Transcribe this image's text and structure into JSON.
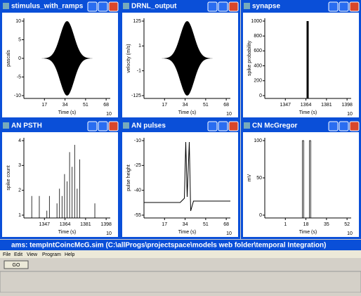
{
  "windows": [
    {
      "title": "stimulus_with_ramps",
      "y_label": "pascals",
      "x_label": "Time (s)",
      "x_scale": "10",
      "y_ticks": [
        "10",
        "5",
        "0",
        "-5",
        "-10"
      ],
      "x_ticks": [
        "17",
        "34",
        "51",
        "68"
      ]
    },
    {
      "title": "DRNL_output",
      "y_label": "velocity (m/s)",
      "x_label": "Time (s)",
      "x_scale": "10",
      "y_ticks": [
        "125",
        "1",
        "-1",
        "-125"
      ],
      "x_ticks": [
        "17",
        "34",
        "51",
        "68"
      ]
    },
    {
      "title": "synapse",
      "y_label": "spike probability",
      "x_label": "Time (s)",
      "x_scale": "10",
      "y_ticks": [
        "1000",
        "800",
        "600",
        "400",
        "200",
        "0"
      ],
      "x_ticks": [
        "1347",
        "1364",
        "1381",
        "1398"
      ]
    },
    {
      "title": "AN PSTH",
      "y_label": "spike count",
      "x_label": "Time (s)",
      "x_scale": "10",
      "y_ticks": [
        "4",
        "3",
        "2",
        "1"
      ],
      "x_ticks": [
        "1347",
        "1364",
        "1381",
        "1398"
      ]
    },
    {
      "title": "AN pulses",
      "y_label": "pulse height",
      "x_label": "Time (s)",
      "x_scale": "10",
      "y_ticks": [
        "-10",
        "-25",
        "-40",
        "-55"
      ],
      "x_ticks": [
        "17",
        "34",
        "51",
        "68"
      ]
    },
    {
      "title": "CN McGregor",
      "y_label": "mV",
      "x_label": "Time (s)",
      "x_scale": "10",
      "y_ticks": [
        "100",
        "50",
        "0"
      ],
      "x_ticks": [
        "1",
        "18",
        "35",
        "52"
      ]
    }
  ],
  "main": {
    "title": "ams: tempIntCoincMcG.sim (C:\\allProgs\\projectspace\\models web folder\\temporal Integration)",
    "menu": [
      "File",
      "Edit",
      "View",
      "Program",
      "Help"
    ],
    "button": "GO"
  }
}
